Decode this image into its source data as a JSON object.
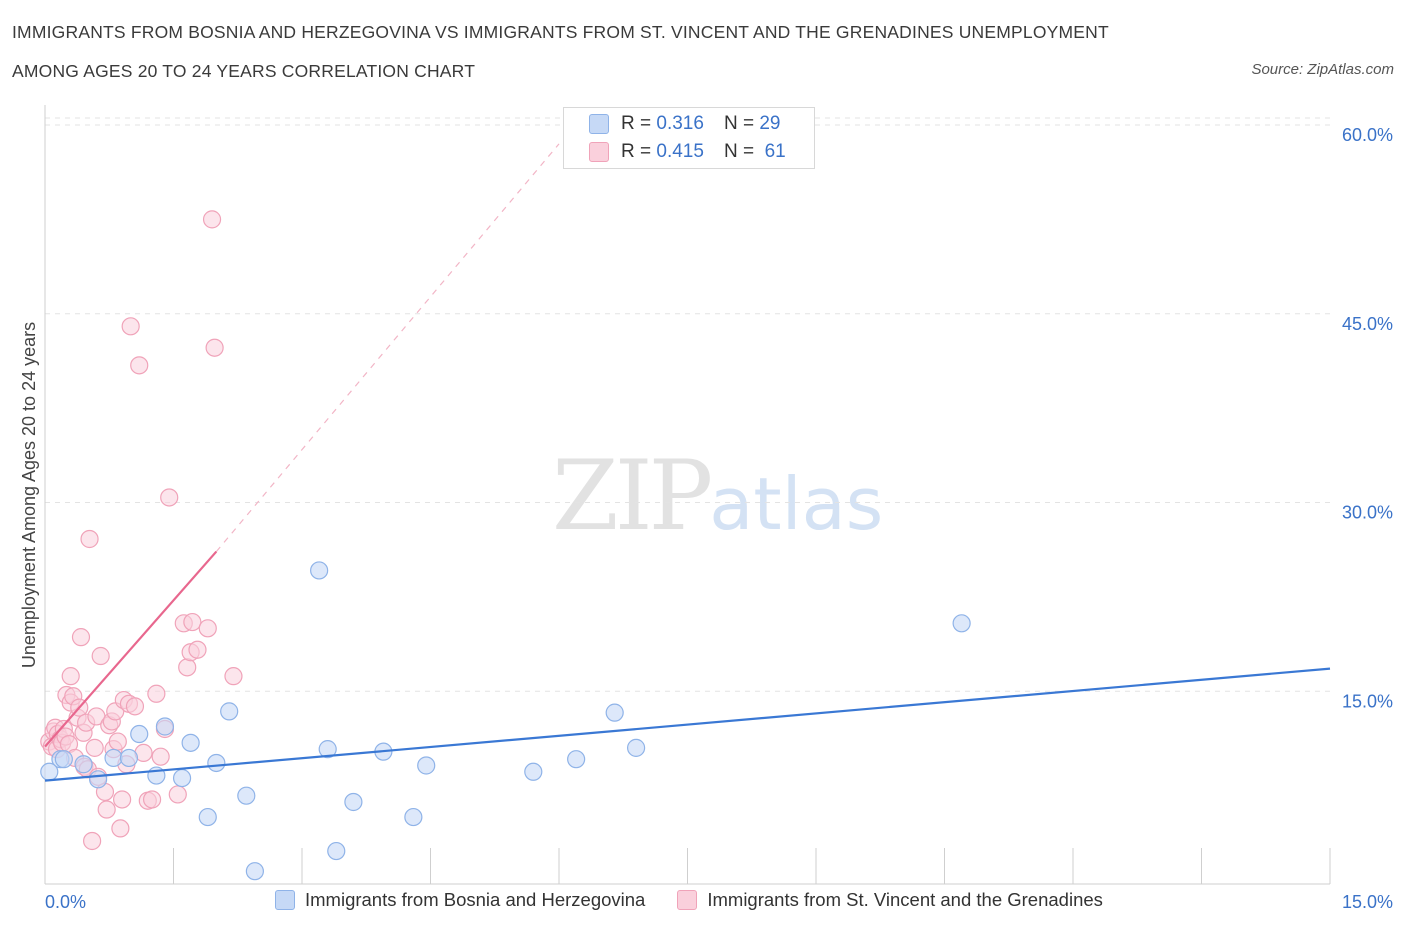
{
  "header": {
    "title_line1": "IMMIGRANTS FROM BOSNIA AND HERZEGOVINA VS IMMIGRANTS FROM ST. VINCENT AND THE GRENADINES UNEMPLOYMENT",
    "title_line2": "AMONG AGES 20 TO 24 YEARS CORRELATION CHART",
    "source": "Source: ZipAtlas.com"
  },
  "watermark": {
    "zip": "ZIP",
    "atlas": "atlas"
  },
  "legend": {
    "r_label": "R =",
    "n_label": "N =",
    "blue": {
      "r": "0.316",
      "n": "29"
    },
    "pink": {
      "r": "0.415",
      "n": "61"
    }
  },
  "colors": {
    "blue_fill": "#c6d9f6",
    "blue_stroke": "#8fb3e8",
    "blue_line": "#3a78d4",
    "pink_fill": "#fad0dc",
    "pink_stroke": "#f0a3b9",
    "pink_line": "#e8678e",
    "grid": "#e3e3e3",
    "axis_label": "#3a72c8"
  },
  "chart_data": {
    "type": "scatter",
    "title": "IMMIGRANTS FROM BOSNIA AND HERZEGOVINA VS IMMIGRANTS FROM ST. VINCENT AND THE GRENADINES UNEMPLOYMENT AMONG AGES 20 TO 24 YEARS CORRELATION CHART",
    "xlabel": "",
    "ylabel": "Unemployment Among Ages 20 to 24 years",
    "xlim": [
      0,
      15
    ],
    "ylim": [
      0,
      60
    ],
    "x_tick_labels": [
      "0.0%",
      "15.0%"
    ],
    "y_tick_labels": [
      "15.0%",
      "30.0%",
      "45.0%",
      "60.0%"
    ],
    "y_ticks": [
      15,
      30,
      45,
      60
    ],
    "grid": true,
    "legend_position": "top-center",
    "series": [
      {
        "name": "Immigrants from Bosnia and Herzegovina",
        "color": "#8fb3e8",
        "r": 0.316,
        "n": 29,
        "trend": {
          "x": [
            0.0,
            15.0
          ],
          "y": [
            7.9,
            16.8
          ]
        },
        "points": [
          [
            0.18,
            9.6
          ],
          [
            0.22,
            9.6
          ],
          [
            0.45,
            9.2
          ],
          [
            0.62,
            8.0
          ],
          [
            0.8,
            9.7
          ],
          [
            0.98,
            9.7
          ],
          [
            1.1,
            11.6
          ],
          [
            1.3,
            8.3
          ],
          [
            1.4,
            12.2
          ],
          [
            1.6,
            8.1
          ],
          [
            1.7,
            10.9
          ],
          [
            1.9,
            5.0
          ],
          [
            2.0,
            9.3
          ],
          [
            2.15,
            13.4
          ],
          [
            2.35,
            6.7
          ],
          [
            2.45,
            0.7
          ],
          [
            3.2,
            24.6
          ],
          [
            3.3,
            10.4
          ],
          [
            3.4,
            2.3
          ],
          [
            3.6,
            6.2
          ],
          [
            3.95,
            10.2
          ],
          [
            4.3,
            5.0
          ],
          [
            4.45,
            9.1
          ],
          [
            5.7,
            8.6
          ],
          [
            6.2,
            9.6
          ],
          [
            6.65,
            13.3
          ],
          [
            6.9,
            10.5
          ],
          [
            10.7,
            20.4
          ],
          [
            0.05,
            8.6
          ]
        ]
      },
      {
        "name": "Immigrants from St. Vincent and the Grenadines",
        "color": "#f0a3b9",
        "r": 0.415,
        "n": 61,
        "trend": {
          "x": [
            0.0,
            2.0
          ],
          "y": [
            10.6,
            26.1
          ]
        },
        "trend_extended": {
          "x": [
            2.0,
            6.0
          ],
          "y": [
            26.1,
            58.5
          ]
        },
        "points": [
          [
            0.05,
            11.0
          ],
          [
            0.08,
            10.6
          ],
          [
            0.1,
            11.8
          ],
          [
            0.12,
            12.1
          ],
          [
            0.14,
            10.4
          ],
          [
            0.15,
            11.6
          ],
          [
            0.18,
            11.2
          ],
          [
            0.2,
            10.9
          ],
          [
            0.22,
            12.0
          ],
          [
            0.24,
            11.4
          ],
          [
            0.25,
            14.7
          ],
          [
            0.28,
            10.8
          ],
          [
            0.3,
            16.2
          ],
          [
            0.3,
            14.1
          ],
          [
            0.33,
            14.6
          ],
          [
            0.35,
            9.7
          ],
          [
            0.38,
            12.9
          ],
          [
            0.4,
            13.7
          ],
          [
            0.42,
            19.3
          ],
          [
            0.45,
            11.7
          ],
          [
            0.46,
            9.0
          ],
          [
            0.48,
            12.5
          ],
          [
            0.5,
            8.8
          ],
          [
            0.52,
            27.1
          ],
          [
            0.55,
            3.1
          ],
          [
            0.58,
            10.5
          ],
          [
            0.6,
            13.0
          ],
          [
            0.62,
            8.2
          ],
          [
            0.65,
            17.8
          ],
          [
            0.7,
            7.0
          ],
          [
            0.72,
            5.6
          ],
          [
            0.75,
            12.3
          ],
          [
            0.78,
            12.6
          ],
          [
            0.8,
            10.4
          ],
          [
            0.82,
            13.4
          ],
          [
            0.85,
            11.0
          ],
          [
            0.88,
            4.1
          ],
          [
            0.9,
            6.4
          ],
          [
            0.92,
            14.3
          ],
          [
            0.95,
            9.2
          ],
          [
            0.98,
            14.0
          ],
          [
            1.0,
            44.0
          ],
          [
            1.05,
            13.8
          ],
          [
            1.1,
            40.9
          ],
          [
            1.15,
            10.1
          ],
          [
            1.2,
            6.3
          ],
          [
            1.25,
            6.4
          ],
          [
            1.3,
            14.8
          ],
          [
            1.35,
            9.8
          ],
          [
            1.4,
            12.0
          ],
          [
            1.45,
            30.4
          ],
          [
            1.55,
            6.8
          ],
          [
            1.62,
            20.4
          ],
          [
            1.66,
            16.9
          ],
          [
            1.7,
            18.1
          ],
          [
            1.72,
            20.5
          ],
          [
            1.78,
            18.3
          ],
          [
            1.9,
            20.0
          ],
          [
            1.95,
            52.5
          ],
          [
            1.98,
            42.3
          ],
          [
            2.2,
            16.2
          ]
        ]
      }
    ]
  }
}
